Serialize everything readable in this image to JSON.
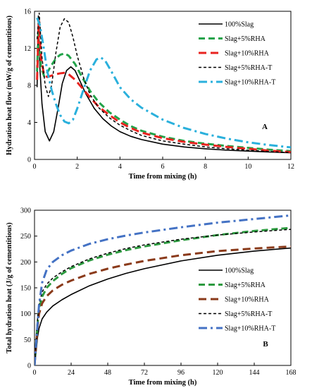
{
  "chart_data": [
    {
      "type": "line",
      "panel_label": "A",
      "xlabel": "Time from mixing (h)",
      "ylabel": "Hydration heat flow (mW/g of cementitious)",
      "xlim": [
        0,
        12
      ],
      "ylim": [
        0,
        16
      ],
      "x_ticks": [
        0,
        2,
        4,
        6,
        8,
        10,
        12
      ],
      "y_ticks": [
        0,
        4,
        8,
        12,
        16
      ],
      "grid": false,
      "legend_position": "top-right",
      "series": [
        {
          "name": "100%Slag",
          "color": "#000000",
          "dash": "solid",
          "width": 1.6,
          "points": [
            [
              0.12,
              7.8
            ],
            [
              0.18,
              15.5
            ],
            [
              0.25,
              10
            ],
            [
              0.35,
              6
            ],
            [
              0.5,
              3
            ],
            [
              0.7,
              2.0
            ],
            [
              0.9,
              3
            ],
            [
              1.1,
              5.5
            ],
            [
              1.3,
              8.2
            ],
            [
              1.5,
              9.6
            ],
            [
              1.7,
              10.0
            ],
            [
              1.9,
              9.6
            ],
            [
              2.1,
              8.6
            ],
            [
              2.4,
              7.1
            ],
            [
              2.8,
              5.5
            ],
            [
              3.2,
              4.4
            ],
            [
              3.6,
              3.6
            ],
            [
              4,
              3.0
            ],
            [
              4.5,
              2.5
            ],
            [
              5,
              2.15
            ],
            [
              6,
              1.65
            ],
            [
              7,
              1.35
            ],
            [
              8,
              1.15
            ],
            [
              9,
              1.0
            ],
            [
              10,
              0.9
            ],
            [
              11,
              0.8
            ],
            [
              12,
              0.72
            ]
          ]
        },
        {
          "name": "Slag+5%RHA",
          "color": "#22a34a",
          "dash": "9,5",
          "width": 3,
          "points": [
            [
              0.12,
              9.5
            ],
            [
              0.18,
              13.8
            ],
            [
              0.3,
              10
            ],
            [
              0.45,
              9
            ],
            [
              0.6,
              9.4
            ],
            [
              0.8,
              10.2
            ],
            [
              1.0,
              10.9
            ],
            [
              1.2,
              11.3
            ],
            [
              1.4,
              11.45
            ],
            [
              1.6,
              11.2
            ],
            [
              1.9,
              10.3
            ],
            [
              2.2,
              9.0
            ],
            [
              2.6,
              7.4
            ],
            [
              3,
              6.2
            ],
            [
              3.5,
              5.1
            ],
            [
              4,
              4.3
            ],
            [
              4.5,
              3.6
            ],
            [
              5,
              3.1
            ],
            [
              6,
              2.45
            ],
            [
              7,
              2.0
            ],
            [
              8,
              1.7
            ],
            [
              9,
              1.45
            ],
            [
              10,
              1.25
            ],
            [
              11,
              1.05
            ],
            [
              12,
              0.9
            ]
          ]
        },
        {
          "name": "Slag+10%RHA",
          "color": "#e8231f",
          "dash": "11,6",
          "width": 3,
          "points": [
            [
              0.12,
              8.6
            ],
            [
              0.2,
              15.2
            ],
            [
              0.3,
              11
            ],
            [
              0.45,
              9.1
            ],
            [
              0.6,
              8.9
            ],
            [
              0.8,
              9.05
            ],
            [
              1.0,
              9.2
            ],
            [
              1.2,
              9.3
            ],
            [
              1.4,
              9.35
            ],
            [
              1.6,
              9.2
            ],
            [
              1.9,
              8.6
            ],
            [
              2.2,
              7.8
            ],
            [
              2.6,
              6.7
            ],
            [
              3,
              5.7
            ],
            [
              3.5,
              4.8
            ],
            [
              4,
              4.0
            ],
            [
              4.5,
              3.4
            ],
            [
              5,
              2.9
            ],
            [
              6,
              2.3
            ],
            [
              7,
              1.9
            ],
            [
              8,
              1.6
            ],
            [
              9,
              1.35
            ],
            [
              10,
              1.15
            ],
            [
              11,
              0.95
            ],
            [
              12,
              0.8
            ]
          ]
        },
        {
          "name": "Slag+5%RHA-T",
          "color": "#000000",
          "dash": "4,3",
          "width": 1.5,
          "points": [
            [
              0.12,
              13
            ],
            [
              0.22,
              15.8
            ],
            [
              0.35,
              11
            ],
            [
              0.5,
              8
            ],
            [
              0.65,
              6.8
            ],
            [
              0.8,
              8
            ],
            [
              1.0,
              11.5
            ],
            [
              1.2,
              14.3
            ],
            [
              1.4,
              15.2
            ],
            [
              1.6,
              14.8
            ],
            [
              1.8,
              13.2
            ],
            [
              2.0,
              11.2
            ],
            [
              2.3,
              8.8
            ],
            [
              2.6,
              7.0
            ],
            [
              3,
              5.6
            ],
            [
              3.5,
              4.5
            ],
            [
              4,
              3.7
            ],
            [
              4.5,
              3.1
            ],
            [
              5,
              2.6
            ],
            [
              6,
              2.0
            ],
            [
              7,
              1.65
            ],
            [
              8,
              1.35
            ],
            [
              9,
              1.15
            ],
            [
              10,
              1.0
            ],
            [
              11,
              0.85
            ],
            [
              12,
              0.75
            ]
          ]
        },
        {
          "name": "Slag+10%RHA-T",
          "color": "#2ab0dc",
          "dash": "12,5,3,5",
          "width": 3,
          "points": [
            [
              0.12,
              15.3
            ],
            [
              0.25,
              14.5
            ],
            [
              0.4,
              12.5
            ],
            [
              0.6,
              9.5
            ],
            [
              0.8,
              7.5
            ],
            [
              1.0,
              6
            ],
            [
              1.2,
              4.8
            ],
            [
              1.4,
              4.1
            ],
            [
              1.6,
              3.9
            ],
            [
              1.8,
              4.3
            ],
            [
              2.0,
              5.5
            ],
            [
              2.3,
              7.6
            ],
            [
              2.6,
              9.6
            ],
            [
              2.9,
              10.8
            ],
            [
              3.1,
              11.0
            ],
            [
              3.3,
              10.7
            ],
            [
              3.6,
              9.5
            ],
            [
              4,
              7.8
            ],
            [
              4.5,
              6.5
            ],
            [
              5,
              5.6
            ],
            [
              6,
              4.3
            ],
            [
              7,
              3.4
            ],
            [
              8,
              2.75
            ],
            [
              9,
              2.25
            ],
            [
              10,
              1.85
            ],
            [
              11,
              1.55
            ],
            [
              12,
              1.3
            ]
          ]
        }
      ]
    },
    {
      "type": "line",
      "panel_label": "B",
      "xlabel": "Time from mixing (h)",
      "ylabel": "Total hydration heat (J/g of cementitious)",
      "xlim": [
        0,
        168
      ],
      "ylim": [
        0,
        300
      ],
      "x_ticks": [
        0,
        24,
        48,
        72,
        96,
        120,
        144,
        168
      ],
      "y_ticks": [
        0,
        50,
        100,
        150,
        200,
        250,
        300
      ],
      "grid": false,
      "legend_position": "right",
      "series": [
        {
          "name": "100%Slag",
          "color": "#000000",
          "dash": "solid",
          "width": 1.6,
          "points": [
            [
              0,
              0
            ],
            [
              1,
              25
            ],
            [
              2,
              55
            ],
            [
              3,
              72
            ],
            [
              5,
              90
            ],
            [
              8,
              103
            ],
            [
              12,
              115
            ],
            [
              18,
              127
            ],
            [
              24,
              137
            ],
            [
              36,
              154
            ],
            [
              48,
              167
            ],
            [
              60,
              178
            ],
            [
              72,
              187
            ],
            [
              96,
              202
            ],
            [
              120,
              213
            ],
            [
              144,
              221
            ],
            [
              168,
              227
            ]
          ]
        },
        {
          "name": "Slag+5%RHA",
          "color": "#2c9a3f",
          "dash": "9,5",
          "width": 3,
          "points": [
            [
              0,
              0
            ],
            [
              1,
              40
            ],
            [
              2,
              80
            ],
            [
              3,
              108
            ],
            [
              5,
              133
            ],
            [
              8,
              150
            ],
            [
              12,
              163
            ],
            [
              18,
              177
            ],
            [
              24,
              188
            ],
            [
              36,
              203
            ],
            [
              48,
              214
            ],
            [
              60,
              223
            ],
            [
              72,
              230
            ],
            [
              96,
              242
            ],
            [
              120,
              252
            ],
            [
              144,
              260
            ],
            [
              168,
              266
            ]
          ]
        },
        {
          "name": "Slag+10%RHA",
          "color": "#8a3a1a",
          "dash": "11,6",
          "width": 3,
          "points": [
            [
              0,
              0
            ],
            [
              1,
              38
            ],
            [
              2,
              75
            ],
            [
              3,
              100
            ],
            [
              5,
              120
            ],
            [
              8,
              134
            ],
            [
              12,
              145
            ],
            [
              18,
              156
            ],
            [
              24,
              164
            ],
            [
              36,
              177
            ],
            [
              48,
              187
            ],
            [
              60,
              195
            ],
            [
              72,
              202
            ],
            [
              96,
              213
            ],
            [
              120,
              221
            ],
            [
              144,
              226
            ],
            [
              168,
              230
            ]
          ]
        },
        {
          "name": "Slag+5%RHA-T",
          "color": "#000000",
          "dash": "4,3",
          "width": 1.5,
          "points": [
            [
              0,
              0
            ],
            [
              1,
              45
            ],
            [
              2,
              90
            ],
            [
              3,
              118
            ],
            [
              5,
              142
            ],
            [
              8,
              157
            ],
            [
              12,
              169
            ],
            [
              18,
              181
            ],
            [
              24,
              191
            ],
            [
              36,
              206
            ],
            [
              48,
              217
            ],
            [
              60,
              226
            ],
            [
              72,
              233
            ],
            [
              96,
              244
            ],
            [
              120,
              252
            ],
            [
              144,
              258
            ],
            [
              168,
              263
            ]
          ]
        },
        {
          "name": "Slag+10%RHA-T",
          "color": "#4472c4",
          "dash": "12,5,3,5",
          "width": 3,
          "points": [
            [
              0,
              0
            ],
            [
              1,
              40
            ],
            [
              2,
              80
            ],
            [
              3,
              118
            ],
            [
              5,
              160
            ],
            [
              8,
              185
            ],
            [
              12,
              200
            ],
            [
              18,
              213
            ],
            [
              24,
              222
            ],
            [
              36,
              235
            ],
            [
              48,
              244
            ],
            [
              60,
              251
            ],
            [
              72,
              257
            ],
            [
              96,
              267
            ],
            [
              120,
              276
            ],
            [
              144,
              283
            ],
            [
              168,
              290
            ]
          ]
        }
      ]
    }
  ]
}
